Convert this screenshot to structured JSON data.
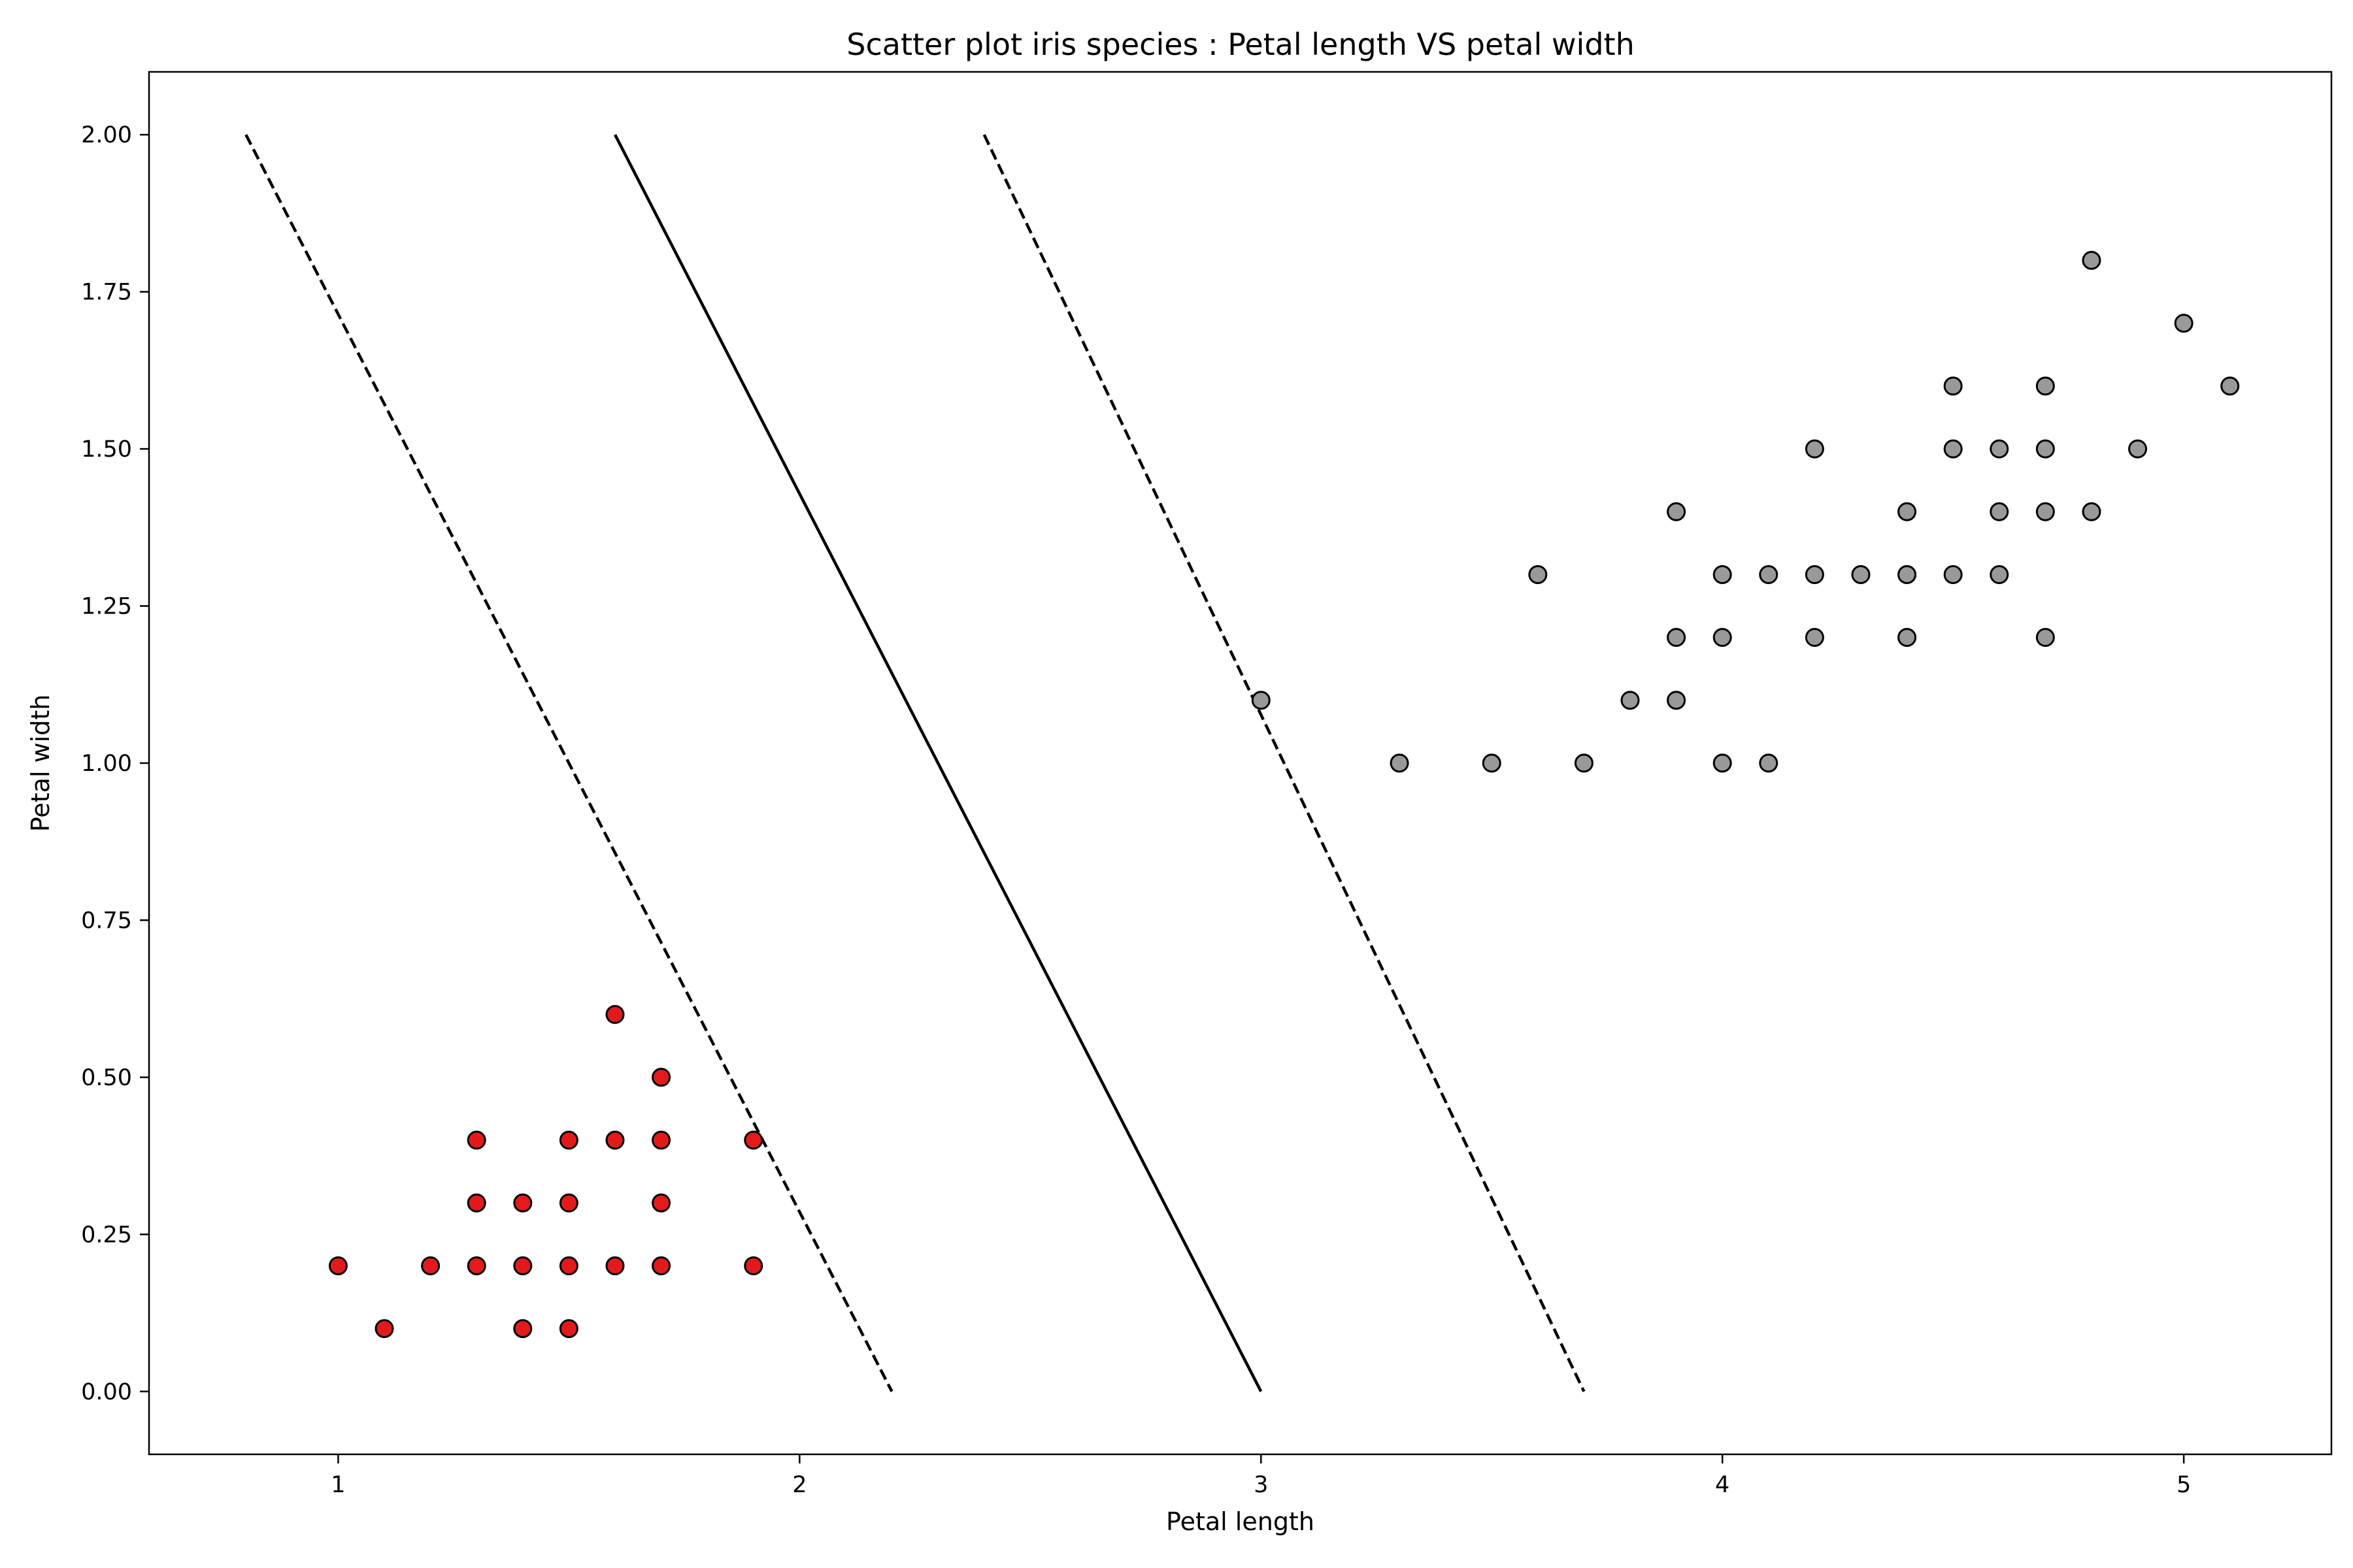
{
  "chart_data": {
    "type": "scatter",
    "title": "Scatter plot iris species : Petal length VS petal width",
    "xlabel": "Petal length",
    "ylabel": "Petal width",
    "xlim": [
      0.59,
      5.32
    ],
    "ylim": [
      -0.1,
      2.1
    ],
    "xticks": [
      {
        "value": 1,
        "label": "1"
      },
      {
        "value": 2,
        "label": "2"
      },
      {
        "value": 3,
        "label": "3"
      },
      {
        "value": 4,
        "label": "4"
      },
      {
        "value": 5,
        "label": "5"
      }
    ],
    "yticks": [
      {
        "value": 0,
        "label": "0.00"
      },
      {
        "value": 0.25,
        "label": "0.25"
      },
      {
        "value": 0.5,
        "label": "0.50"
      },
      {
        "value": 0.75,
        "label": "0.75"
      },
      {
        "value": 1.0,
        "label": "1.00"
      },
      {
        "value": 1.25,
        "label": "1.25"
      },
      {
        "value": 1.5,
        "label": "1.50"
      },
      {
        "value": 1.75,
        "label": "1.75"
      },
      {
        "value": 2.0,
        "label": "2.00"
      }
    ],
    "grid": false,
    "series": [
      {
        "color": "#e31a1c",
        "points": [
          [
            1.0,
            0.2
          ],
          [
            1.1,
            0.1
          ],
          [
            1.2,
            0.2
          ],
          [
            1.3,
            0.2
          ],
          [
            1.3,
            0.3
          ],
          [
            1.3,
            0.4
          ],
          [
            1.4,
            0.1
          ],
          [
            1.4,
            0.2
          ],
          [
            1.4,
            0.3
          ],
          [
            1.5,
            0.1
          ],
          [
            1.5,
            0.2
          ],
          [
            1.5,
            0.3
          ],
          [
            1.5,
            0.4
          ],
          [
            1.6,
            0.2
          ],
          [
            1.6,
            0.4
          ],
          [
            1.6,
            0.6
          ],
          [
            1.7,
            0.2
          ],
          [
            1.7,
            0.3
          ],
          [
            1.7,
            0.4
          ],
          [
            1.7,
            0.5
          ],
          [
            1.9,
            0.2
          ],
          [
            1.9,
            0.4
          ]
        ]
      },
      {
        "color": "#999999",
        "points": [
          [
            3.0,
            1.1
          ],
          [
            3.3,
            1.0
          ],
          [
            3.5,
            1.0
          ],
          [
            3.6,
            1.3
          ],
          [
            3.7,
            1.0
          ],
          [
            3.8,
            1.1
          ],
          [
            3.9,
            1.1
          ],
          [
            3.9,
            1.2
          ],
          [
            3.9,
            1.4
          ],
          [
            4.0,
            1.0
          ],
          [
            4.0,
            1.2
          ],
          [
            4.0,
            1.3
          ],
          [
            4.1,
            1.0
          ],
          [
            4.1,
            1.3
          ],
          [
            4.2,
            1.2
          ],
          [
            4.2,
            1.3
          ],
          [
            4.2,
            1.5
          ],
          [
            4.3,
            1.3
          ],
          [
            4.4,
            1.2
          ],
          [
            4.4,
            1.3
          ],
          [
            4.4,
            1.4
          ],
          [
            4.5,
            1.3
          ],
          [
            4.5,
            1.5
          ],
          [
            4.5,
            1.6
          ],
          [
            4.6,
            1.3
          ],
          [
            4.6,
            1.4
          ],
          [
            4.6,
            1.5
          ],
          [
            4.7,
            1.2
          ],
          [
            4.7,
            1.4
          ],
          [
            4.7,
            1.5
          ],
          [
            4.7,
            1.6
          ],
          [
            4.8,
            1.4
          ],
          [
            4.8,
            1.8
          ],
          [
            4.9,
            1.5
          ],
          [
            5.0,
            1.7
          ],
          [
            5.1,
            1.6
          ]
        ]
      }
    ],
    "lines": [
      {
        "style": "dashed",
        "points": [
          [
            0.8,
            2.0
          ],
          [
            2.2,
            0.0
          ]
        ]
      },
      {
        "style": "solid",
        "points": [
          [
            1.6,
            2.0
          ],
          [
            3.0,
            0.0
          ]
        ]
      },
      {
        "style": "dashed",
        "points": [
          [
            2.4,
            2.0
          ],
          [
            3.7,
            0.0
          ]
        ]
      }
    ]
  }
}
